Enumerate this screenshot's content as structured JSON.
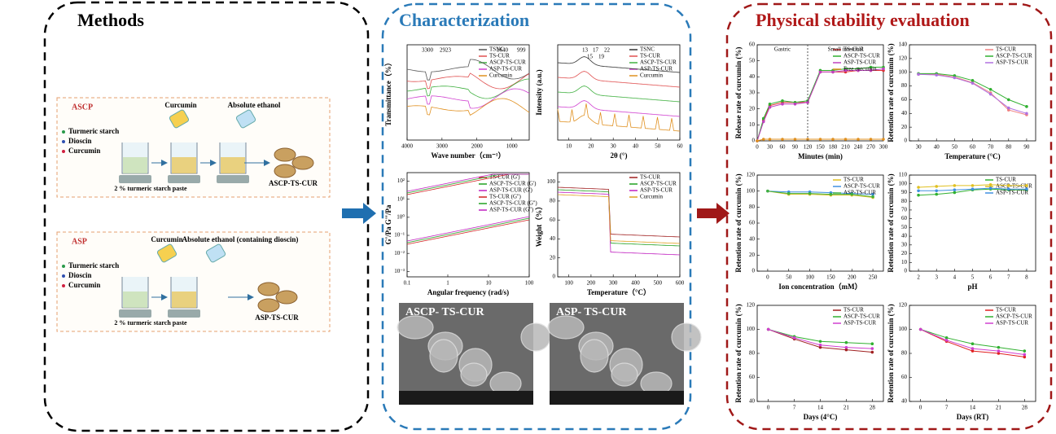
{
  "methods": {
    "title": "Methods",
    "ascp": {
      "label": "ASCP",
      "curcumin": "Curcumin",
      "ethanol": "Absolute ethanol",
      "legend": [
        "Turmeric starch",
        "Dioscin",
        "Curcumin"
      ],
      "paste": "2 % turmeric starch paste",
      "product": "ASCP-TS-CUR"
    },
    "asp": {
      "label": "ASP",
      "curcumin": "Curcumin",
      "ethanol": "Absolute ethanol (containing dioscin)",
      "legend": [
        "Turmeric starch",
        "Dioscin",
        "Curcumin"
      ],
      "paste": "2 % turmeric starch paste",
      "product": "ASP-TS-CUR"
    }
  },
  "characterization": {
    "title": "Characterization",
    "charts": [
      {
        "xlabel": "Wave number（cm⁻¹）",
        "ylabel": "Transmittance（%）",
        "xlim": [
          4000,
          500
        ],
        "xticks": [
          4000,
          3000,
          2000,
          1000
        ],
        "legend": [
          "TSNC",
          "TS-CUR",
          "ASCP-TS-CUR",
          "ASP-TS-CUR",
          "Curcumin"
        ],
        "colors": [
          "#555555",
          "#e05050",
          "#40b040",
          "#d040d0",
          "#e09020"
        ],
        "annotations": [
          "3300",
          "2923",
          "1640",
          "999"
        ]
      },
      {
        "xlabel": "2θ (°)",
        "ylabel": "Intensity (a.u.)",
        "xlim": [
          5,
          60
        ],
        "xticks": [
          10,
          20,
          30,
          40,
          50,
          60
        ],
        "legend": [
          "TSNC",
          "TS-CUR",
          "ASCP-TS-CUR",
          "ASP-TS-CUR",
          "Curcumin"
        ],
        "colors": [
          "#333333",
          "#e05050",
          "#40b040",
          "#d040d0",
          "#e09020"
        ],
        "annotations": [
          "13",
          "15",
          "17",
          "19",
          "22"
        ]
      },
      {
        "xlabel": "Angular frequency (rad/s)",
        "ylabel": "G'/Pa   G''/Pa",
        "log": true,
        "xlim": [
          0.1,
          100
        ],
        "xticks": [
          0.1,
          1,
          10,
          100
        ],
        "ylim": [
          0.0005,
          300
        ],
        "yticks": [
          {
            "value": 0.001,
            "label": "10⁻³"
          },
          {
            "value": 0.01,
            "label": "10⁻²"
          },
          {
            "value": 0.1,
            "label": "10⁻¹"
          },
          {
            "value": 1,
            "label": "10⁰"
          },
          {
            "value": 10,
            "label": "10¹"
          },
          {
            "value": 100,
            "label": "10²"
          }
        ],
        "legend": [
          "TS-CUR (G')",
          "ASCP-TS-CUR (G')",
          "ASP-TS-CUR (G')",
          "TS-CUR (G'')",
          "ASCP-TS-CUR (G'')",
          "ASP-TS-CUR (G'')"
        ],
        "colors": [
          "#d02020",
          "#20a020",
          "#c020c0",
          "#d02020",
          "#20a020",
          "#c020c0"
        ]
      },
      {
        "xlabel": "Temperature（°C）",
        "ylabel": "Weight（%）",
        "xlim": [
          50,
          600
        ],
        "xticks": [
          100,
          200,
          300,
          400,
          500,
          600
        ],
        "ylim": [
          0,
          110
        ],
        "yticks": [
          0,
          20,
          40,
          60,
          80,
          100
        ],
        "legend": [
          "TS-CUR",
          "ASCP-TS-CUR",
          "ASP-TS-CUR",
          "Curcumin"
        ],
        "colors": [
          "#a02020",
          "#20a020",
          "#c020c0",
          "#e0a020"
        ]
      }
    ],
    "sem": [
      "ASCP- TS-CUR",
      "ASP- TS-CUR"
    ]
  },
  "stability": {
    "title": "Physical stability evaluation",
    "charts": [
      {
        "xlabel": "Minutes (min)",
        "ylabel": "Release rate of curcumin (%)",
        "xlim": [
          0,
          300
        ],
        "xticks": [
          0,
          30,
          60,
          90,
          120,
          150,
          180,
          210,
          240,
          270,
          300
        ],
        "ylim": [
          0,
          60
        ],
        "yticks": [
          0,
          10,
          20,
          30,
          40,
          50,
          60
        ],
        "annotations": [
          "Gastric",
          "Small intestinal"
        ],
        "x": [
          0,
          15,
          30,
          60,
          90,
          120,
          150,
          180,
          210,
          240,
          270,
          300
        ],
        "series": [
          {
            "name": "TS-CUR",
            "color": "#e03030",
            "values": [
              0,
              13,
              22,
              24,
              24,
              24,
              43,
              43,
              43,
              44,
              44,
              44
            ]
          },
          {
            "name": "ASCP-TS-CUR",
            "color": "#30b030",
            "values": [
              0,
              14,
              23,
              25,
              24,
              25,
              44,
              44,
              45,
              45,
              46,
              46
            ]
          },
          {
            "name": "ASP-TS-CUR",
            "color": "#c040c0",
            "values": [
              0,
              12,
              21,
              23,
              23,
              24,
              43,
              43,
              44,
              44,
              44,
              45
            ]
          },
          {
            "name": "Free curcumin",
            "color": "#e09020",
            "values": [
              0,
              1,
              1,
              1,
              1,
              1,
              1,
              1,
              1,
              1,
              1,
              1
            ]
          }
        ]
      },
      {
        "xlabel": "Temperature (°C)",
        "ylabel": "Retention rate of curcumin (%)",
        "xlim": [
          25,
          95
        ],
        "xticks": [
          30,
          40,
          50,
          60,
          70,
          80,
          90
        ],
        "ylim": [
          0,
          140
        ],
        "yticks": [
          0,
          20,
          40,
          60,
          80,
          100,
          120,
          140
        ],
        "x": [
          30,
          40,
          50,
          60,
          70,
          80,
          90
        ],
        "series": [
          {
            "name": "TS-CUR",
            "color": "#f08080",
            "values": [
              97,
              97,
              93,
              85,
              70,
              45,
              38
            ]
          },
          {
            "name": "ASCP-TS-CUR",
            "color": "#30b030",
            "values": [
              98,
              98,
              95,
              88,
              75,
              60,
              50
            ]
          },
          {
            "name": "ASP-TS-CUR",
            "color": "#b070e0",
            "values": [
              97,
              96,
              92,
              84,
              68,
              48,
              40
            ]
          }
        ]
      },
      {
        "xlabel": "Ion concentration（mM）",
        "ylabel": "Retention rate of curcumin (%)",
        "xlim": [
          -25,
          275
        ],
        "xticks": [
          0,
          50,
          100,
          150,
          200,
          250
        ],
        "ylim": [
          0,
          120
        ],
        "yticks": [
          0,
          20,
          40,
          60,
          80,
          100,
          120
        ],
        "x": [
          0,
          50,
          100,
          150,
          200,
          250
        ],
        "series": [
          {
            "name": "TS-CUR",
            "color": "#e0c020",
            "values": [
              100,
              96,
              96,
              95,
              95,
              92
            ]
          },
          {
            "name": "ASCP-TS-CUR",
            "color": "#4090e0",
            "values": [
              100,
              99,
              99,
              98,
              97,
              96
            ]
          },
          {
            "name": "ASP-TS-CUR",
            "color": "#40b040",
            "values": [
              100,
              97,
              97,
              96,
              96,
              93
            ]
          }
        ]
      },
      {
        "xlabel": "pH",
        "ylabel": "Retention rate of curcumin (%)",
        "xlim": [
          1.5,
          8.5
        ],
        "xticks": [
          2,
          3,
          4,
          5,
          6,
          7,
          8
        ],
        "ylim": [
          0,
          110
        ],
        "yticks": [
          0,
          10,
          20,
          30,
          40,
          50,
          60,
          70,
          80,
          90,
          100,
          110
        ],
        "x": [
          2,
          3,
          4,
          5,
          6,
          7,
          8
        ],
        "series": [
          {
            "name": "TS-CUR",
            "color": "#30b030",
            "values": [
              87,
              88,
              90,
              93,
              94,
              93,
              93
            ]
          },
          {
            "name": "ASCP-TS-CUR",
            "color": "#e0c020",
            "values": [
              96,
              97,
              98,
              98,
              99,
              98,
              98
            ]
          },
          {
            "name": "ASP-TS-CUR",
            "color": "#4090e0",
            "values": [
              92,
              92,
              93,
              94,
              95,
              94,
              94
            ]
          }
        ]
      },
      {
        "xlabel": "Days (4°C)",
        "ylabel": "Retention rate of curcumin (%)",
        "xlim": [
          -3,
          31
        ],
        "xticks": [
          0,
          7,
          14,
          21,
          28
        ],
        "ylim": [
          40,
          120
        ],
        "yticks": [
          40,
          60,
          80,
          100,
          120
        ],
        "x": [
          0,
          7,
          14,
          21,
          28
        ],
        "series": [
          {
            "name": "TS-CUR",
            "color": "#a02020",
            "values": [
              100,
              92,
              85,
              83,
              81
            ]
          },
          {
            "name": "ASCP-TS-CUR",
            "color": "#30b030",
            "values": [
              100,
              94,
              90,
              89,
              88
            ]
          },
          {
            "name": "ASP-TS-CUR",
            "color": "#d040d0",
            "values": [
              100,
              93,
              87,
              85,
              84
            ]
          }
        ]
      },
      {
        "xlabel": "Days (RT)",
        "ylabel": "Retention rate of curcumin (%)",
        "xlim": [
          -3,
          31
        ],
        "xticks": [
          0,
          7,
          14,
          21,
          28
        ],
        "ylim": [
          40,
          120
        ],
        "yticks": [
          40,
          60,
          80,
          100,
          120
        ],
        "x": [
          0,
          7,
          14,
          21,
          28
        ],
        "series": [
          {
            "name": "TS-CUR",
            "color": "#e02020",
            "values": [
              100,
              90,
              82,
              80,
              77
            ]
          },
          {
            "name": "ASCP-TS-CUR",
            "color": "#30b030",
            "values": [
              100,
              93,
              88,
              85,
              82
            ]
          },
          {
            "name": "ASP-TS-CUR",
            "color": "#d040d0",
            "values": [
              100,
              91,
              84,
              82,
              79
            ]
          }
        ]
      }
    ]
  }
}
